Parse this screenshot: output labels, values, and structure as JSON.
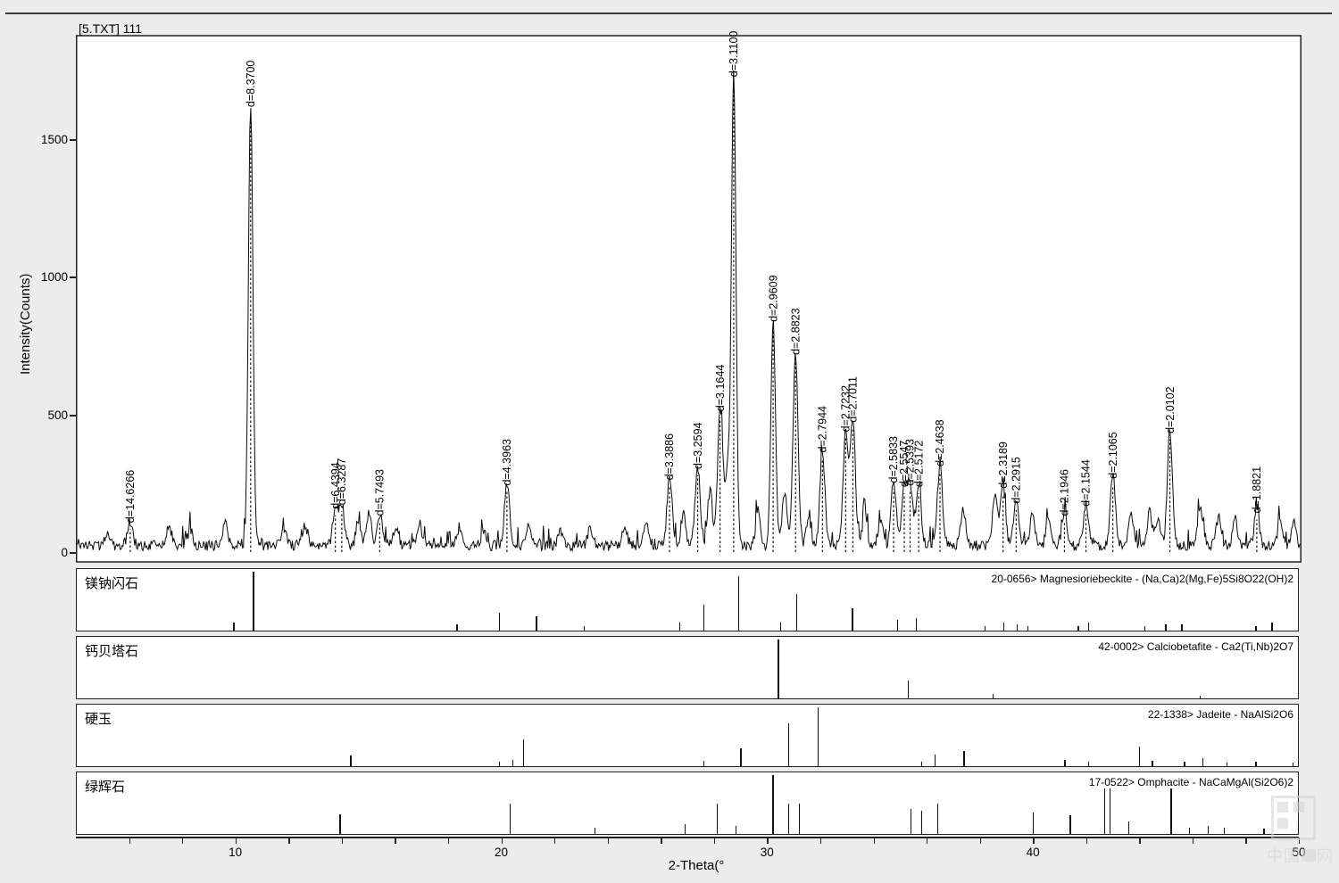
{
  "chart_data": {
    "type": "line",
    "title": "[5.TXT] 111",
    "xlabel": "2-Theta(°",
    "ylabel": "Intensity(Counts)",
    "xlim": [
      4,
      50
    ],
    "ylim": [
      0,
      1900
    ],
    "grid": false,
    "curve_color": "#0a0a0a",
    "y_ticks": [
      {
        "value": 0,
        "label": "0"
      },
      {
        "value": 500,
        "label": "500"
      },
      {
        "value": 1000,
        "label": "1000"
      },
      {
        "value": 1500,
        "label": "1500"
      }
    ],
    "x_major_ticks": [
      {
        "value": 10,
        "label": "10"
      },
      {
        "value": 20,
        "label": "20"
      },
      {
        "value": 30,
        "label": "30"
      },
      {
        "value": 40,
        "label": "40"
      },
      {
        "value": 50,
        "label": "50"
      }
    ],
    "x_minor_step": 2,
    "labeled_peaks": [
      {
        "label": "d=14.6266",
        "d": 14.6266,
        "two_theta": 6.04,
        "intensity": 90
      },
      {
        "label": "d=8.3700",
        "d": 8.37,
        "two_theta": 10.56,
        "intensity": 1600
      },
      {
        "label": "d=6.4394",
        "d": 6.4394,
        "two_theta": 13.74,
        "intensity": 140
      },
      {
        "label": "d=6.3287",
        "d": 6.3287,
        "two_theta": 13.98,
        "intensity": 155
      },
      {
        "label": "d=5.7493",
        "d": 5.7493,
        "two_theta": 15.4,
        "intensity": 115
      },
      {
        "label": "d=4.3963",
        "d": 4.3963,
        "two_theta": 20.18,
        "intensity": 225
      },
      {
        "label": "d=3.3886",
        "d": 3.3886,
        "two_theta": 26.28,
        "intensity": 245
      },
      {
        "label": "d=3.2594",
        "d": 3.2594,
        "two_theta": 27.34,
        "intensity": 285
      },
      {
        "label": "d=3.1644",
        "d": 3.1644,
        "two_theta": 28.18,
        "intensity": 495
      },
      {
        "label": "d=3.1100",
        "d": 3.11,
        "two_theta": 28.69,
        "intensity": 1710
      },
      {
        "label": "d=2.9609",
        "d": 2.9609,
        "two_theta": 30.17,
        "intensity": 820
      },
      {
        "label": "d=2.8823",
        "d": 2.8823,
        "two_theta": 31.01,
        "intensity": 700
      },
      {
        "label": "d=2.7944",
        "d": 2.7944,
        "two_theta": 32.02,
        "intensity": 345
      },
      {
        "label": "d=2.7232",
        "d": 2.7232,
        "two_theta": 32.89,
        "intensity": 420
      },
      {
        "label": "d=2.7011",
        "d": 2.7011,
        "two_theta": 33.16,
        "intensity": 455
      },
      {
        "label": "d=2.5833",
        "d": 2.5833,
        "two_theta": 34.69,
        "intensity": 235
      },
      {
        "label": "d=2.5547",
        "d": 2.5547,
        "two_theta": 35.09,
        "intensity": 220
      },
      {
        "label": "d=2.5393",
        "d": 2.5393,
        "two_theta": 35.31,
        "intensity": 225
      },
      {
        "label": "d=2.5172",
        "d": 2.5172,
        "two_theta": 35.63,
        "intensity": 220
      },
      {
        "label": "d=2.4638",
        "d": 2.4638,
        "two_theta": 36.43,
        "intensity": 295
      },
      {
        "label": "d=2.3189",
        "d": 2.3189,
        "two_theta": 38.8,
        "intensity": 215
      },
      {
        "label": "d=2.2915",
        "d": 2.2915,
        "two_theta": 39.29,
        "intensity": 160
      },
      {
        "label": "d=2.1946",
        "d": 2.1946,
        "two_theta": 41.1,
        "intensity": 115
      },
      {
        "label": "d=2.1544",
        "d": 2.1544,
        "two_theta": 41.91,
        "intensity": 150
      },
      {
        "label": "d=2.1065",
        "d": 2.1065,
        "two_theta": 42.92,
        "intensity": 250
      },
      {
        "label": "d=2.0102",
        "d": 2.0102,
        "two_theta": 45.06,
        "intensity": 415
      },
      {
        "label": "d=1.8821",
        "d": 1.8821,
        "two_theta": 48.32,
        "intensity": 125
      }
    ],
    "background_peaks": [
      [
        5.2,
        50
      ],
      [
        7.5,
        70
      ],
      [
        8.3,
        60
      ],
      [
        9.6,
        95
      ],
      [
        11.8,
        55
      ],
      [
        12.6,
        70
      ],
      [
        14.6,
        90
      ],
      [
        15.0,
        120
      ],
      [
        16.0,
        60
      ],
      [
        16.9,
        80
      ],
      [
        18.4,
        70
      ],
      [
        19.3,
        60
      ],
      [
        21.0,
        85
      ],
      [
        22.2,
        55
      ],
      [
        23.3,
        65
      ],
      [
        24.6,
        75
      ],
      [
        25.4,
        85
      ],
      [
        26.8,
        120
      ],
      [
        27.8,
        200
      ],
      [
        28.45,
        260
      ],
      [
        29.6,
        120
      ],
      [
        30.6,
        190
      ],
      [
        31.5,
        100
      ],
      [
        33.6,
        110
      ],
      [
        34.2,
        90
      ],
      [
        37.3,
        140
      ],
      [
        38.5,
        190
      ],
      [
        39.9,
        110
      ],
      [
        40.5,
        90
      ],
      [
        43.6,
        115
      ],
      [
        44.3,
        125
      ],
      [
        44.6,
        100
      ],
      [
        46.2,
        140
      ],
      [
        46.9,
        115
      ],
      [
        47.5,
        95
      ],
      [
        49.2,
        100
      ],
      [
        49.7,
        85
      ]
    ],
    "reference_patterns": [
      {
        "name": "镁钠闪石",
        "card": "20-0656> Magnesioriebeckite - (Na,Ca)2(Mg,Fe)5Si8O22(OH)2",
        "ticks": [
          [
            9.9,
            0.14
          ],
          [
            10.64,
            1.0
          ],
          [
            18.3,
            0.1
          ],
          [
            19.9,
            0.3
          ],
          [
            21.3,
            0.24
          ],
          [
            23.1,
            0.08
          ],
          [
            26.7,
            0.13
          ],
          [
            27.6,
            0.44
          ],
          [
            28.9,
            0.93
          ],
          [
            30.5,
            0.13
          ],
          [
            31.1,
            0.62
          ],
          [
            33.2,
            0.38
          ],
          [
            34.9,
            0.18
          ],
          [
            35.6,
            0.22
          ],
          [
            38.2,
            0.08
          ],
          [
            38.9,
            0.13
          ],
          [
            39.4,
            0.1
          ],
          [
            39.8,
            0.08
          ],
          [
            41.7,
            0.08
          ],
          [
            42.1,
            0.13
          ],
          [
            44.2,
            0.08
          ],
          [
            45.0,
            0.1
          ],
          [
            45.6,
            0.1
          ],
          [
            48.4,
            0.08
          ],
          [
            49.0,
            0.13
          ]
        ]
      },
      {
        "name": "钙贝塔石",
        "card": "42-0002> Calciobetafite - Ca2(Ti,Nb)2O7",
        "ticks": [
          [
            30.4,
            1.0
          ],
          [
            35.3,
            0.3
          ],
          [
            38.5,
            0.08
          ],
          [
            46.3,
            0.05
          ]
        ]
      },
      {
        "name": "硬玉",
        "card": "22-1338> Jadeite - NaAlSi2O6",
        "ticks": [
          [
            14.3,
            0.18
          ],
          [
            19.9,
            0.07
          ],
          [
            20.4,
            0.11
          ],
          [
            20.8,
            0.45
          ],
          [
            27.6,
            0.09
          ],
          [
            29.0,
            0.3
          ],
          [
            30.8,
            0.73
          ],
          [
            31.9,
            1.0
          ],
          [
            35.8,
            0.07
          ],
          [
            36.3,
            0.2
          ],
          [
            37.4,
            0.26
          ],
          [
            41.2,
            0.11
          ],
          [
            42.1,
            0.07
          ],
          [
            44.0,
            0.34
          ],
          [
            44.5,
            0.09
          ],
          [
            45.7,
            0.07
          ],
          [
            46.4,
            0.14
          ],
          [
            47.3,
            0.06
          ],
          [
            48.4,
            0.07
          ],
          [
            49.8,
            0.06
          ]
        ]
      },
      {
        "name": "绿辉石",
        "card": "17-0522> Omphacite - NaCaMgAl(Si2O6)2",
        "ticks": [
          [
            13.9,
            0.33
          ],
          [
            20.3,
            0.52
          ],
          [
            23.5,
            0.11
          ],
          [
            26.9,
            0.16
          ],
          [
            28.1,
            0.52
          ],
          [
            28.8,
            0.13
          ],
          [
            30.2,
            1.0
          ],
          [
            30.8,
            0.52
          ],
          [
            31.2,
            0.52
          ],
          [
            35.4,
            0.42
          ],
          [
            35.8,
            0.4
          ],
          [
            36.4,
            0.52
          ],
          [
            40.0,
            0.37
          ],
          [
            41.4,
            0.32
          ],
          [
            42.7,
            0.78
          ],
          [
            42.9,
            0.78
          ],
          [
            43.6,
            0.22
          ],
          [
            45.2,
            0.78
          ],
          [
            45.9,
            0.11
          ],
          [
            46.6,
            0.13
          ],
          [
            47.2,
            0.11
          ],
          [
            48.7,
            0.09
          ],
          [
            50.0,
            0.18
          ]
        ]
      }
    ]
  },
  "watermark": {
    "text_left": "中国",
    "text_right": "网"
  }
}
